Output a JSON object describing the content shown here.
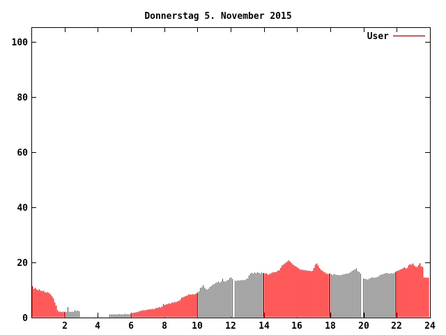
{
  "page": {
    "background": "#ffffff"
  },
  "chart_data": {
    "type": "bar",
    "style": "impulses",
    "title": "Donnerstag 5. November 2015",
    "legend": {
      "position": "top-right-inside",
      "entries": [
        {
          "label": "User",
          "color": "#ff0000"
        }
      ]
    },
    "bar_color": "#ff0000",
    "axis_color": "#000000",
    "grid": false,
    "xlabel": "",
    "ylabel": "",
    "xlim": [
      0,
      24
    ],
    "ylim": [
      0,
      105
    ],
    "x_ticks": [
      2,
      4,
      6,
      8,
      10,
      12,
      14,
      16,
      18,
      20,
      22,
      24
    ],
    "y_ticks": [
      0,
      20,
      40,
      60,
      80,
      100
    ],
    "x_unit": "hour-of-day",
    "samples_per_hour": 12,
    "series": [
      {
        "name": "User",
        "values": [
          11.4,
          10.4,
          10.7,
          10.2,
          10.0,
          10.2,
          9.8,
          9.6,
          9.8,
          9.3,
          9.1,
          9.3,
          8.9,
          8.3,
          7.7,
          6.9,
          5.6,
          4.3,
          2.7,
          2.2,
          2.1,
          2.0,
          2.2,
          2.0,
          2.1,
          2.0,
          3.8,
          2.2,
          2.0,
          2.1,
          2.0,
          2.6,
          2.4,
          2.5,
          2.3,
          0,
          0,
          0,
          0,
          0,
          0,
          0,
          0,
          0,
          0,
          0,
          0,
          0,
          0,
          0,
          0,
          0,
          0,
          0,
          0,
          0,
          1.1,
          1.1,
          1.2,
          1.1,
          1.2,
          1.1,
          1.2,
          1.3,
          1.2,
          1.1,
          1.2,
          1.4,
          1.2,
          1.3,
          1.2,
          1.4,
          1.6,
          1.7,
          1.8,
          1.9,
          2.0,
          2.2,
          2.3,
          2.5,
          2.6,
          2.7,
          2.6,
          2.8,
          2.9,
          3.0,
          3.1,
          3.2,
          3.0,
          3.3,
          3.5,
          3.6,
          3.8,
          3.7,
          4.0,
          4.9,
          4.6,
          4.8,
          5.0,
          5.2,
          5.1,
          5.4,
          5.5,
          5.7,
          5.6,
          5.9,
          6.1,
          6.4,
          7.2,
          7.4,
          7.6,
          7.8,
          8.0,
          8.3,
          8.4,
          8.3,
          8.5,
          8.4,
          8.6,
          8.8,
          9.1,
          9.5,
          10.7,
          11.0,
          11.8,
          10.9,
          10.4,
          10.1,
          10.5,
          11.1,
          11.5,
          11.9,
          12.2,
          12.5,
          12.8,
          13.0,
          12.7,
          13.0,
          14.0,
          13.2,
          13.0,
          13.4,
          13.7,
          14.3,
          14.5,
          14.0,
          0,
          13.4,
          13.3,
          13.5,
          13.4,
          13.6,
          13.5,
          13.7,
          13.6,
          14.0,
          14.2,
          15.3,
          16.0,
          16.2,
          15.9,
          16.3,
          16.1,
          16.4,
          16.2,
          16.0,
          16.3,
          16.1,
          16.2,
          15.9,
          16.1,
          15.6,
          15.8,
          16.0,
          16.3,
          16.5,
          16.4,
          16.6,
          16.9,
          17.2,
          18.0,
          18.8,
          19.3,
          19.6,
          20.0,
          20.4,
          20.8,
          20.3,
          19.8,
          19.2,
          18.9,
          18.6,
          18.2,
          17.8,
          17.5,
          17.4,
          17.3,
          17.2,
          17.2,
          17.1,
          17.0,
          16.9,
          16.8,
          17.0,
          18.0,
          19.3,
          19.6,
          18.8,
          18.0,
          17.4,
          17.0,
          16.6,
          16.3,
          16.0,
          15.8,
          15.9,
          16.0,
          15.7,
          15.5,
          15.8,
          15.6,
          15.4,
          15.5,
          15.3,
          15.4,
          15.6,
          15.7,
          15.8,
          15.9,
          16.0,
          16.2,
          16.6,
          17.0,
          17.2,
          17.5,
          17.8,
          16.8,
          16.5,
          16.0,
          0,
          14.2,
          14.0,
          13.9,
          13.8,
          14.0,
          14.3,
          14.5,
          14.6,
          14.4,
          14.5,
          14.7,
          15.0,
          15.4,
          15.6,
          15.7,
          16.0,
          16.1,
          16.2,
          16.0,
          15.9,
          16.1,
          16.0,
          16.2,
          16.4,
          16.8,
          17.0,
          17.2,
          17.5,
          17.6,
          18.0,
          18.2,
          17.9,
          18.1,
          19.0,
          19.4,
          19.2,
          19.6,
          18.9,
          18.5,
          18.3,
          19.0,
          19.8,
          18.6,
          18.4,
          14.6,
          14.5,
          14.4,
          14.5
        ]
      }
    ]
  }
}
